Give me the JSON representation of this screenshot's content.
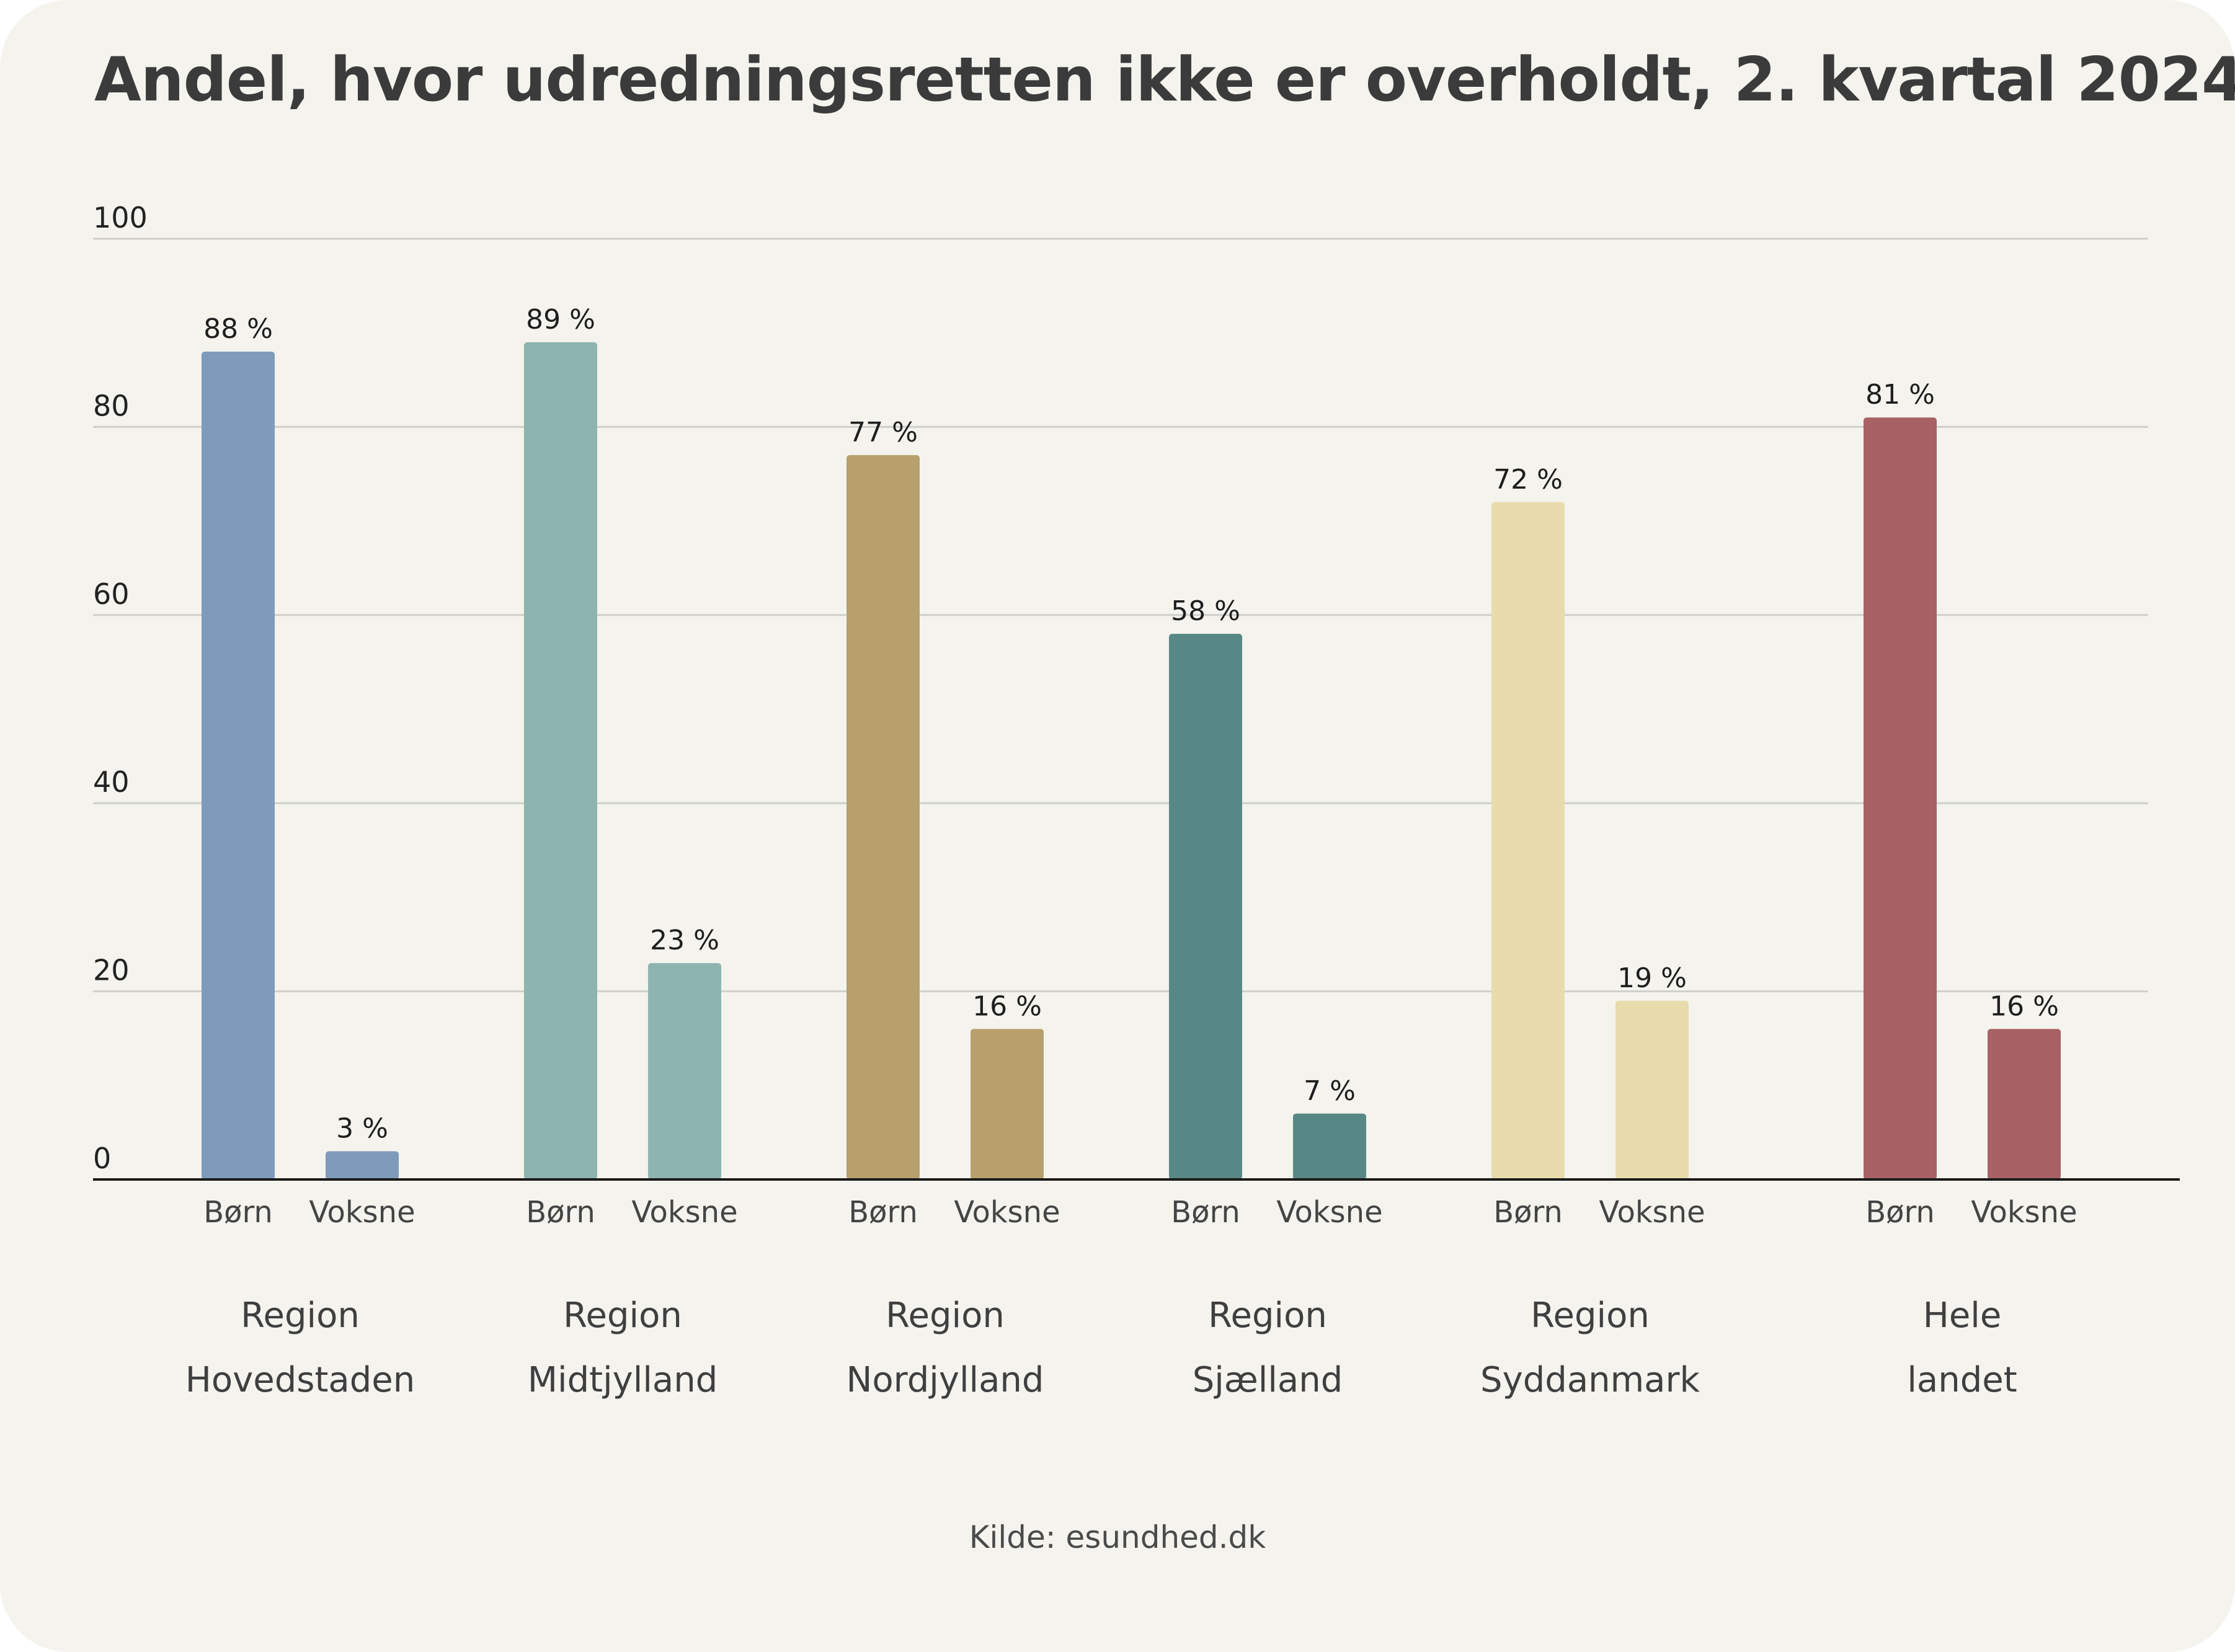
{
  "title": "Andel, hvor udredningsretten ikke er overholdt, 2. kvartal 2024",
  "source": "Kilde: esundhed.dk",
  "colors": {
    "background": "#f4f3ed",
    "grid": "#cfcfcb",
    "axis": "#1a1a1a",
    "text": "#3b3b3b"
  },
  "chart_data": {
    "type": "bar",
    "ylim": [
      0,
      100
    ],
    "yticks": [
      0,
      20,
      40,
      60,
      80,
      100
    ],
    "grid": true,
    "value_suffix": " %",
    "groups": [
      {
        "label_lines": [
          "Region",
          "Hovedstaden"
        ],
        "color": "#7f9bbb",
        "bars": [
          {
            "label": "Børn",
            "value": 88
          },
          {
            "label": "Voksne",
            "value": 3
          }
        ]
      },
      {
        "label_lines": [
          "Region",
          "Midtjylland"
        ],
        "color": "#8eb4b0",
        "bars": [
          {
            "label": "Børn",
            "value": 89
          },
          {
            "label": "Voksne",
            "value": 23
          }
        ]
      },
      {
        "label_lines": [
          "Region",
          "Nordjylland"
        ],
        "color": "#b8a06d",
        "bars": [
          {
            "label": "Børn",
            "value": 77
          },
          {
            "label": "Voksne",
            "value": 16
          }
        ]
      },
      {
        "label_lines": [
          "Region",
          "Sjælland"
        ],
        "color": "#578885",
        "bars": [
          {
            "label": "Børn",
            "value": 58
          },
          {
            "label": "Voksne",
            "value": 7
          }
        ]
      },
      {
        "label_lines": [
          "Region",
          "Syddanmark"
        ],
        "color": "#e8dcac",
        "bars": [
          {
            "label": "Børn",
            "value": 72
          },
          {
            "label": "Voksne",
            "value": 19
          }
        ]
      },
      {
        "label_lines": [
          "Hele",
          "landet"
        ],
        "color": "#a86266",
        "bars": [
          {
            "label": "Børn",
            "value": 81
          },
          {
            "label": "Voksne",
            "value": 16
          }
        ]
      }
    ]
  }
}
